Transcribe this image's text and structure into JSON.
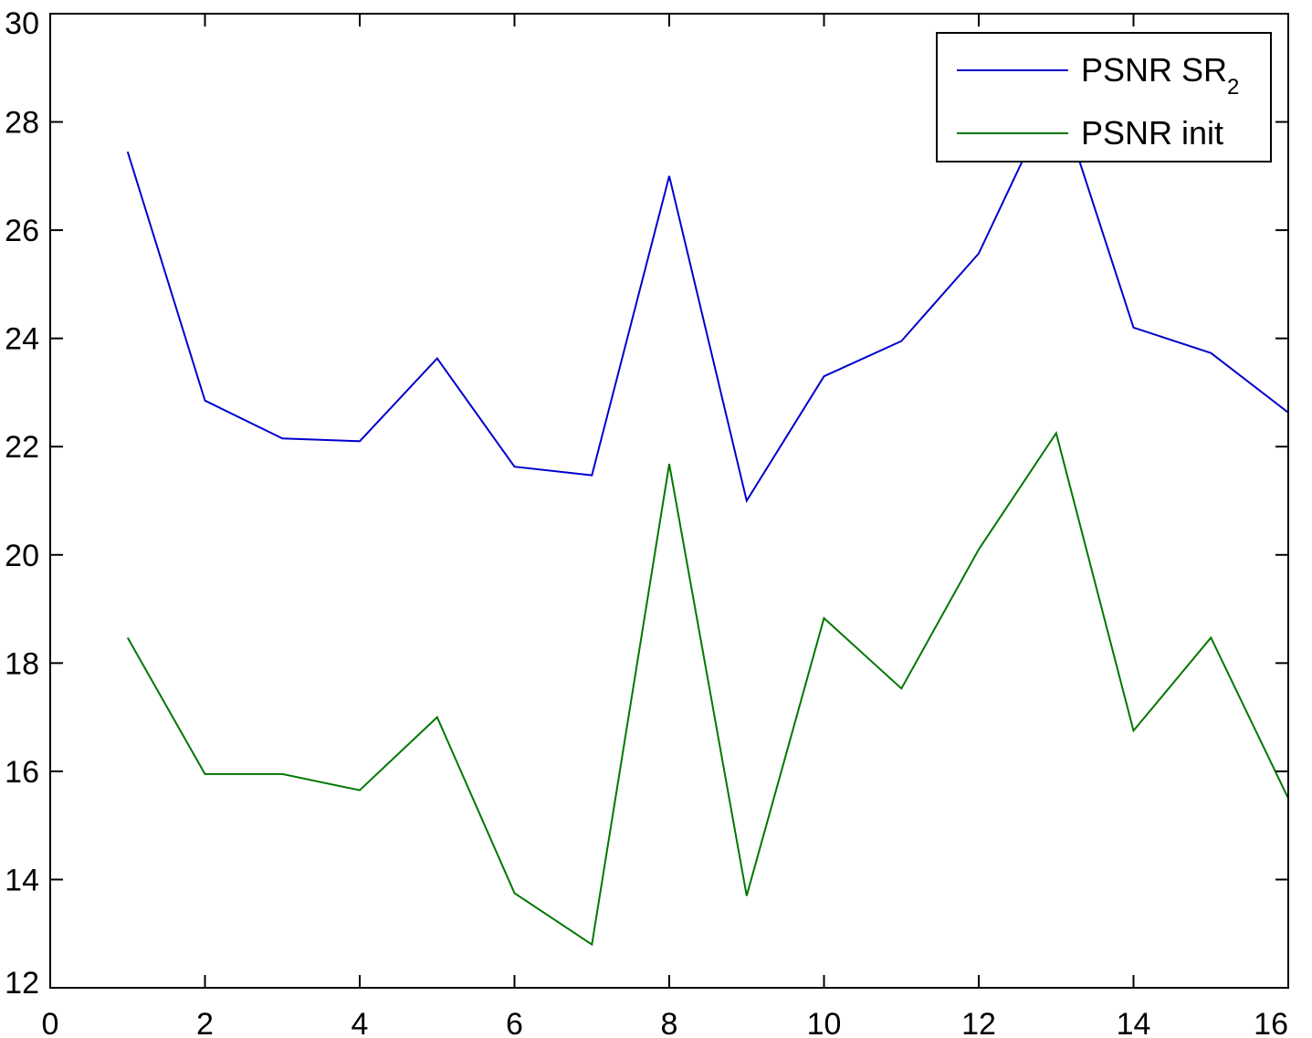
{
  "chart_data": {
    "type": "line",
    "title": "",
    "xlabel": "",
    "ylabel": "",
    "xlim": [
      0,
      16
    ],
    "ylim": [
      12,
      30
    ],
    "xticks": [
      0,
      2,
      4,
      6,
      8,
      10,
      12,
      14,
      16
    ],
    "yticks": [
      12,
      14,
      16,
      18,
      20,
      22,
      24,
      26,
      28,
      30
    ],
    "grid": false,
    "legend": {
      "placement": "top-right"
    },
    "x": [
      1,
      2,
      3,
      4,
      5,
      6,
      7,
      8,
      9,
      10,
      11,
      12,
      13,
      14,
      15,
      16
    ],
    "series": [
      {
        "name": "PSNR SR",
        "name_subscript": "2",
        "color": "#0000cc",
        "values": [
          27.45,
          22.85,
          22.15,
          22.1,
          23.63,
          21.63,
          21.47,
          27.0,
          21.0,
          23.3,
          23.95,
          25.57,
          28.6,
          24.2,
          23.73,
          22.63
        ]
      },
      {
        "name": "PSNR init",
        "color": "#007700",
        "values": [
          18.47,
          15.95,
          15.95,
          15.65,
          17.0,
          13.75,
          12.8,
          21.68,
          13.7,
          18.83,
          17.53,
          20.1,
          22.25,
          16.75,
          18.47,
          15.5
        ]
      }
    ]
  }
}
